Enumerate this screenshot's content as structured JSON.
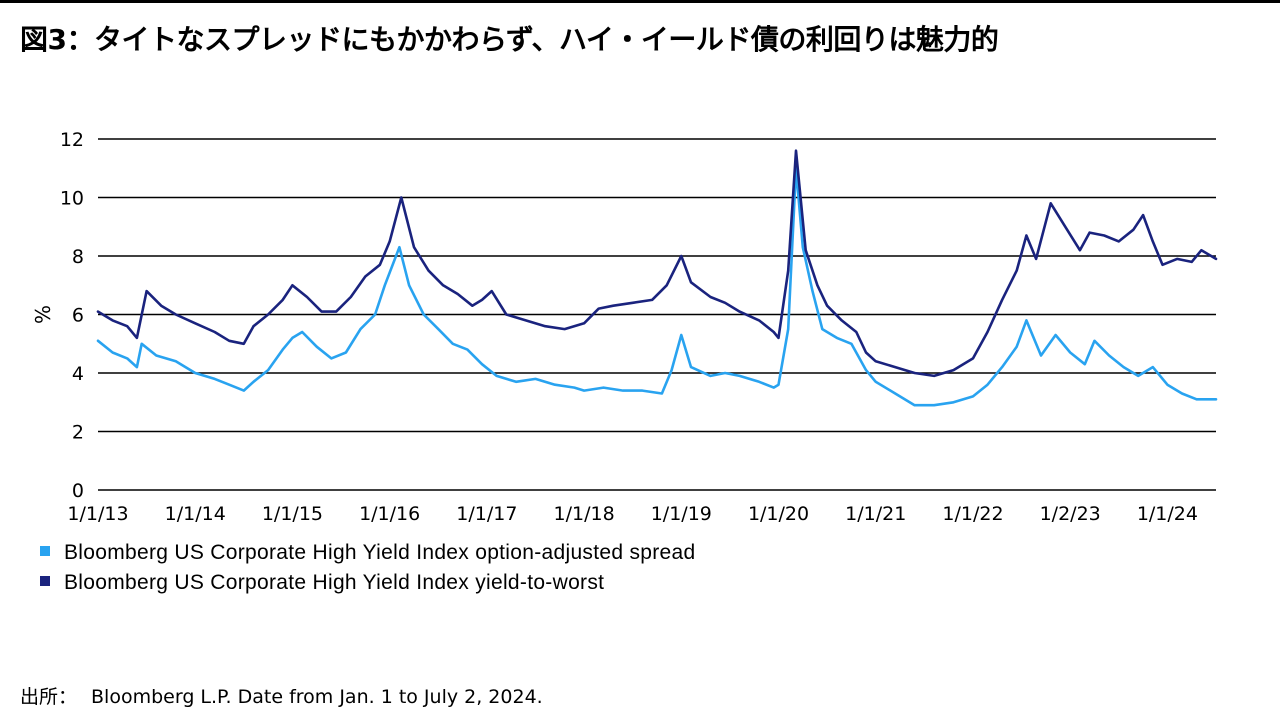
{
  "page": {
    "title": "図3：タイトなスプレッドにもかかわらず、ハイ・イールド債の利回りは魅力的",
    "source_label": "出所：",
    "source_text": "Bloomberg L.P. Date from Jan. 1 to July 2, 2024."
  },
  "chart_data": {
    "type": "line",
    "ylabel": "%",
    "ylim": [
      0,
      12
    ],
    "yticks": [
      0,
      2,
      4,
      6,
      8,
      10,
      12
    ],
    "xlim": [
      2013.0,
      2024.5
    ],
    "xticks": [
      {
        "label": "1/1/13",
        "x": 2013.0
      },
      {
        "label": "1/1/14",
        "x": 2014.0
      },
      {
        "label": "1/1/15",
        "x": 2015.0
      },
      {
        "label": "1/1/16",
        "x": 2016.0
      },
      {
        "label": "1/1/17",
        "x": 2017.0
      },
      {
        "label": "1/1/18",
        "x": 2018.0
      },
      {
        "label": "1/1/19",
        "x": 2019.0
      },
      {
        "label": "1/1/20",
        "x": 2020.0
      },
      {
        "label": "1/1/21",
        "x": 2021.0
      },
      {
        "label": "1/1/22",
        "x": 2022.0
      },
      {
        "label": "1/2/23",
        "x": 2023.0
      },
      {
        "label": "1/1/24",
        "x": 2024.0
      }
    ],
    "grid": true,
    "legend_position": "bottom-left",
    "series": [
      {
        "name": "Bloomberg US Corporate High Yield Index option-adjusted spread",
        "color": "#29A3F0",
        "points": [
          [
            2013.0,
            5.1
          ],
          [
            2013.15,
            4.7
          ],
          [
            2013.3,
            4.5
          ],
          [
            2013.4,
            4.2
          ],
          [
            2013.45,
            5.0
          ],
          [
            2013.6,
            4.6
          ],
          [
            2013.8,
            4.4
          ],
          [
            2014.0,
            4.0
          ],
          [
            2014.2,
            3.8
          ],
          [
            2014.35,
            3.6
          ],
          [
            2014.5,
            3.4
          ],
          [
            2014.6,
            3.7
          ],
          [
            2014.75,
            4.1
          ],
          [
            2014.9,
            4.8
          ],
          [
            2015.0,
            5.2
          ],
          [
            2015.1,
            5.4
          ],
          [
            2015.25,
            4.9
          ],
          [
            2015.4,
            4.5
          ],
          [
            2015.55,
            4.7
          ],
          [
            2015.7,
            5.5
          ],
          [
            2015.85,
            6.0
          ],
          [
            2015.95,
            7.0
          ],
          [
            2016.1,
            8.3
          ],
          [
            2016.2,
            7.0
          ],
          [
            2016.35,
            6.0
          ],
          [
            2016.5,
            5.5
          ],
          [
            2016.65,
            5.0
          ],
          [
            2016.8,
            4.8
          ],
          [
            2016.95,
            4.3
          ],
          [
            2017.1,
            3.9
          ],
          [
            2017.3,
            3.7
          ],
          [
            2017.5,
            3.8
          ],
          [
            2017.7,
            3.6
          ],
          [
            2017.9,
            3.5
          ],
          [
            2018.0,
            3.4
          ],
          [
            2018.2,
            3.5
          ],
          [
            2018.4,
            3.4
          ],
          [
            2018.6,
            3.4
          ],
          [
            2018.8,
            3.3
          ],
          [
            2018.9,
            4.1
          ],
          [
            2019.0,
            5.3
          ],
          [
            2019.1,
            4.2
          ],
          [
            2019.3,
            3.9
          ],
          [
            2019.45,
            4.0
          ],
          [
            2019.6,
            3.9
          ],
          [
            2019.8,
            3.7
          ],
          [
            2019.95,
            3.5
          ],
          [
            2020.0,
            3.6
          ],
          [
            2020.1,
            5.5
          ],
          [
            2020.18,
            11.0
          ],
          [
            2020.25,
            8.3
          ],
          [
            2020.35,
            6.8
          ],
          [
            2020.45,
            5.5
          ],
          [
            2020.6,
            5.2
          ],
          [
            2020.75,
            5.0
          ],
          [
            2020.9,
            4.1
          ],
          [
            2021.0,
            3.7
          ],
          [
            2021.2,
            3.3
          ],
          [
            2021.4,
            2.9
          ],
          [
            2021.6,
            2.9
          ],
          [
            2021.8,
            3.0
          ],
          [
            2022.0,
            3.2
          ],
          [
            2022.15,
            3.6
          ],
          [
            2022.3,
            4.2
          ],
          [
            2022.45,
            4.9
          ],
          [
            2022.55,
            5.8
          ],
          [
            2022.7,
            4.6
          ],
          [
            2022.85,
            5.3
          ],
          [
            2023.0,
            4.7
          ],
          [
            2023.15,
            4.3
          ],
          [
            2023.25,
            5.1
          ],
          [
            2023.4,
            4.6
          ],
          [
            2023.55,
            4.2
          ],
          [
            2023.7,
            3.9
          ],
          [
            2023.85,
            4.2
          ],
          [
            2024.0,
            3.6
          ],
          [
            2024.15,
            3.3
          ],
          [
            2024.3,
            3.1
          ],
          [
            2024.5,
            3.1
          ]
        ]
      },
      {
        "name": "Bloomberg US Corporate High Yield Index yield-to-worst",
        "color": "#1A237E",
        "points": [
          [
            2013.0,
            6.1
          ],
          [
            2013.15,
            5.8
          ],
          [
            2013.3,
            5.6
          ],
          [
            2013.4,
            5.2
          ],
          [
            2013.5,
            6.8
          ],
          [
            2013.65,
            6.3
          ],
          [
            2013.8,
            6.0
          ],
          [
            2014.0,
            5.7
          ],
          [
            2014.2,
            5.4
          ],
          [
            2014.35,
            5.1
          ],
          [
            2014.5,
            5.0
          ],
          [
            2014.6,
            5.6
          ],
          [
            2014.75,
            6.0
          ],
          [
            2014.9,
            6.5
          ],
          [
            2015.0,
            7.0
          ],
          [
            2015.15,
            6.6
          ],
          [
            2015.3,
            6.1
          ],
          [
            2015.45,
            6.1
          ],
          [
            2015.6,
            6.6
          ],
          [
            2015.75,
            7.3
          ],
          [
            2015.9,
            7.7
          ],
          [
            2016.0,
            8.5
          ],
          [
            2016.12,
            10.0
          ],
          [
            2016.25,
            8.3
          ],
          [
            2016.4,
            7.5
          ],
          [
            2016.55,
            7.0
          ],
          [
            2016.7,
            6.7
          ],
          [
            2016.85,
            6.3
          ],
          [
            2016.95,
            6.5
          ],
          [
            2017.05,
            6.8
          ],
          [
            2017.2,
            6.0
          ],
          [
            2017.4,
            5.8
          ],
          [
            2017.6,
            5.6
          ],
          [
            2017.8,
            5.5
          ],
          [
            2018.0,
            5.7
          ],
          [
            2018.15,
            6.2
          ],
          [
            2018.3,
            6.3
          ],
          [
            2018.5,
            6.4
          ],
          [
            2018.7,
            6.5
          ],
          [
            2018.85,
            7.0
          ],
          [
            2019.0,
            8.0
          ],
          [
            2019.1,
            7.1
          ],
          [
            2019.3,
            6.6
          ],
          [
            2019.45,
            6.4
          ],
          [
            2019.6,
            6.1
          ],
          [
            2019.8,
            5.8
          ],
          [
            2019.95,
            5.4
          ],
          [
            2020.0,
            5.2
          ],
          [
            2020.1,
            7.5
          ],
          [
            2020.18,
            11.6
          ],
          [
            2020.28,
            8.2
          ],
          [
            2020.4,
            7.0
          ],
          [
            2020.5,
            6.3
          ],
          [
            2020.65,
            5.8
          ],
          [
            2020.8,
            5.4
          ],
          [
            2020.9,
            4.7
          ],
          [
            2021.0,
            4.4
          ],
          [
            2021.2,
            4.2
          ],
          [
            2021.4,
            4.0
          ],
          [
            2021.6,
            3.9
          ],
          [
            2021.8,
            4.1
          ],
          [
            2022.0,
            4.5
          ],
          [
            2022.15,
            5.4
          ],
          [
            2022.3,
            6.5
          ],
          [
            2022.45,
            7.5
          ],
          [
            2022.55,
            8.7
          ],
          [
            2022.65,
            7.9
          ],
          [
            2022.8,
            9.8
          ],
          [
            2022.95,
            9.0
          ],
          [
            2023.1,
            8.2
          ],
          [
            2023.2,
            8.8
          ],
          [
            2023.35,
            8.7
          ],
          [
            2023.5,
            8.5
          ],
          [
            2023.65,
            8.9
          ],
          [
            2023.75,
            9.4
          ],
          [
            2023.85,
            8.5
          ],
          [
            2023.95,
            7.7
          ],
          [
            2024.1,
            7.9
          ],
          [
            2024.25,
            7.8
          ],
          [
            2024.35,
            8.2
          ],
          [
            2024.5,
            7.9
          ]
        ]
      }
    ]
  }
}
